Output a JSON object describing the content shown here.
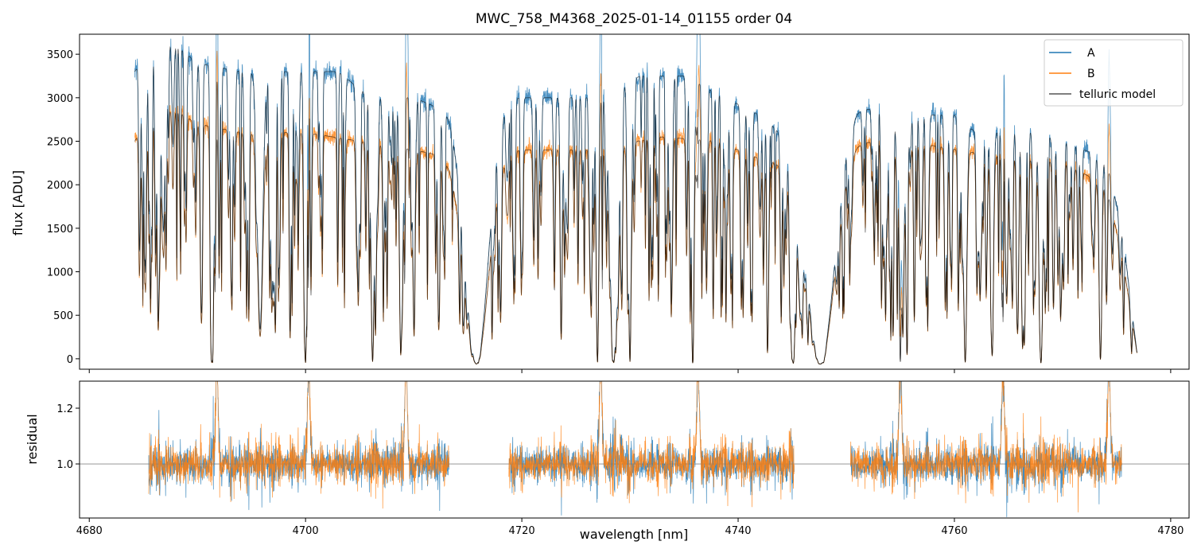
{
  "chart_data": {
    "type": "line",
    "title": "MWC_758_M4368_2025-01-14_01155  order 04",
    "xlabel": "wavelength [nm]",
    "xlim": [
      4679.1,
      4781.7
    ],
    "xticks": [
      4680,
      4700,
      4720,
      4740,
      4760,
      4780
    ],
    "xtick_labels": [
      "4680",
      "4700",
      "4720",
      "4740",
      "4760",
      "4780"
    ],
    "top_panel": {
      "ylabel": "flux [ADU]",
      "ylim": [
        -120,
        3730
      ],
      "yticks": [
        0,
        500,
        1000,
        1500,
        2000,
        2500,
        3000,
        3500
      ],
      "ytick_labels": [
        "0",
        "500",
        "1000",
        "1500",
        "2000",
        "2500",
        "3000",
        "3500"
      ],
      "legend": {
        "placement": "top-right",
        "entries": [
          {
            "label": "A",
            "color": "#1f77b4"
          },
          {
            "label": "B",
            "color": "#ff7f0e"
          },
          {
            "label": "telluric model",
            "color": "#555555"
          }
        ]
      },
      "x_range": [
        4684.2,
        4776.9
      ],
      "continuum_A": {
        "x": [
          4684.2,
          4686,
          4688,
          4690,
          4694,
          4698,
          4703,
          4706,
          4710,
          4712,
          4718,
          4722,
          4726,
          4731,
          4735,
          4738,
          4742,
          4745,
          4751,
          4755,
          4760,
          4762,
          4767,
          4770,
          4774,
          4775.5,
          4776.9
        ],
        "y": [
          3300,
          3600,
          3600,
          3400,
          3300,
          3300,
          3300,
          3000,
          3000,
          2900,
          3000,
          3000,
          3000,
          3250,
          3250,
          3050,
          2800,
          2500,
          2900,
          2800,
          2800,
          2600,
          2600,
          2500,
          2300,
          1500,
          50
        ]
      },
      "continuum_B": {
        "x": [
          4684.2,
          4686,
          4688,
          4690,
          4694,
          4700,
          4705,
          4710,
          4714,
          4720,
          4726,
          4733,
          4738,
          4742,
          4745,
          4751,
          4758,
          4765,
          4770,
          4774,
          4775.5,
          4776.9
        ],
        "y": [
          2500,
          2850,
          2850,
          2700,
          2600,
          2600,
          2500,
          2400,
          2300,
          2400,
          2400,
          2550,
          2500,
          2300,
          2200,
          2500,
          2450,
          2300,
          2250,
          2000,
          1200,
          50
        ]
      },
      "strong_lines": [
        {
          "x": 4691.4,
          "depth": 0.99,
          "width": 0.12
        },
        {
          "x": 4695.8,
          "depth": 0.88,
          "width": 0.25
        },
        {
          "x": 4700.0,
          "depth": 0.99,
          "width": 0.12
        },
        {
          "x": 4706.2,
          "depth": 0.99,
          "width": 0.15
        },
        {
          "x": 4708.8,
          "depth": 0.95,
          "width": 0.12
        },
        {
          "x": 4715.8,
          "depth": 1.0,
          "width": 1.1
        },
        {
          "x": 4727.0,
          "depth": 0.99,
          "width": 0.12
        },
        {
          "x": 4728.5,
          "depth": 0.99,
          "width": 0.35
        },
        {
          "x": 4730.0,
          "depth": 0.99,
          "width": 0.12
        },
        {
          "x": 4735.8,
          "depth": 0.99,
          "width": 0.12
        },
        {
          "x": 4745.1,
          "depth": 0.99,
          "width": 0.2
        },
        {
          "x": 4747.6,
          "depth": 1.0,
          "width": 1.3
        },
        {
          "x": 4755.0,
          "depth": 0.99,
          "width": 0.12
        },
        {
          "x": 4761.0,
          "depth": 0.99,
          "width": 0.15
        },
        {
          "x": 4763.5,
          "depth": 0.95,
          "width": 0.12
        },
        {
          "x": 4768.0,
          "depth": 0.99,
          "width": 0.15
        },
        {
          "x": 4773.5,
          "depth": 0.97,
          "width": 0.12
        }
      ]
    },
    "bottom_panel": {
      "ylabel": "residual",
      "ylim": [
        0.806,
        1.297
      ],
      "yticks": [
        1.0,
        1.2
      ],
      "ytick_labels": [
        "1.0",
        "1.2"
      ],
      "reference_line": 1.0,
      "segments": [
        [
          4685.5,
          4713.3
        ],
        [
          4718.8,
          4745.2
        ],
        [
          4750.4,
          4775.5
        ]
      ],
      "spikes": [
        4691.8,
        4700.3,
        4709.3,
        4727.3,
        4736.3,
        4755.0,
        4764.5,
        4774.3
      ]
    }
  }
}
